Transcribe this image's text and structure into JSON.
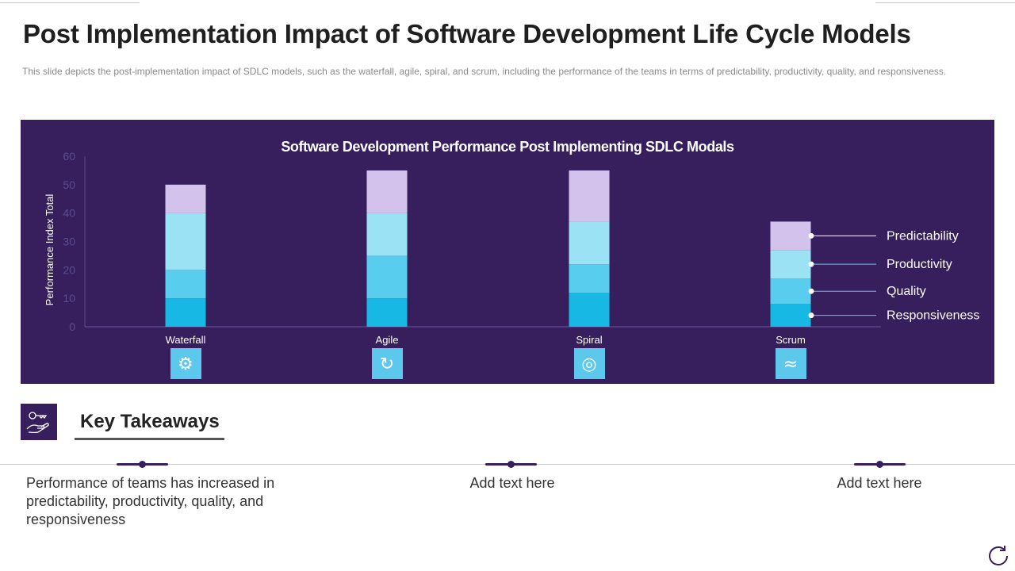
{
  "header": {
    "title": "Post Implementation Impact of Software Development Life Cycle Models",
    "description": "This slide depicts the post-implementation  impact of SDLC models, such as the waterfall,  agile, spiral, and scrum, including the performance  of the teams in terms of predictability, productivity,  quality, and responsiveness."
  },
  "chart_data": {
    "type": "bar",
    "stacked": true,
    "title": "Software Development Performance Post Implementing SDLC Modals",
    "xlabel": "",
    "ylabel": "Performance Index Total",
    "ylim": [
      0,
      60
    ],
    "yticks": [
      "0",
      "10",
      "20",
      "30",
      "40",
      "50",
      "60"
    ],
    "categories": [
      "Waterfall",
      "Agile",
      "Spiral",
      "Scrum"
    ],
    "category_icons": [
      "waterfall-process-icon",
      "agile-cycle-icon",
      "spiral-icon",
      "scrum-wave-icon"
    ],
    "series": [
      {
        "name": "Responsiveness",
        "color": "#17b8e3",
        "values": [
          10,
          10,
          12,
          8
        ]
      },
      {
        "name": "Quality",
        "color": "#58cdee",
        "values": [
          10,
          15,
          10,
          9
        ]
      },
      {
        "name": "Productivity",
        "color": "#9ae2f4",
        "values": [
          20,
          15,
          15,
          10
        ]
      },
      {
        "name": "Predictability",
        "color": "#d3c3ec",
        "values": [
          10,
          15,
          18,
          10
        ]
      }
    ],
    "legend_placement": "right",
    "grid": false
  },
  "takeaways": {
    "title": "Key Takeaways",
    "icon": "key-in-hand-icon",
    "items": [
      "Performance of teams has increased in predictability, productivity, quality, and responsiveness",
      "Add text here",
      "Add text here"
    ]
  },
  "colors": {
    "panel": "#371f5e",
    "accent": "#17b8e3"
  }
}
